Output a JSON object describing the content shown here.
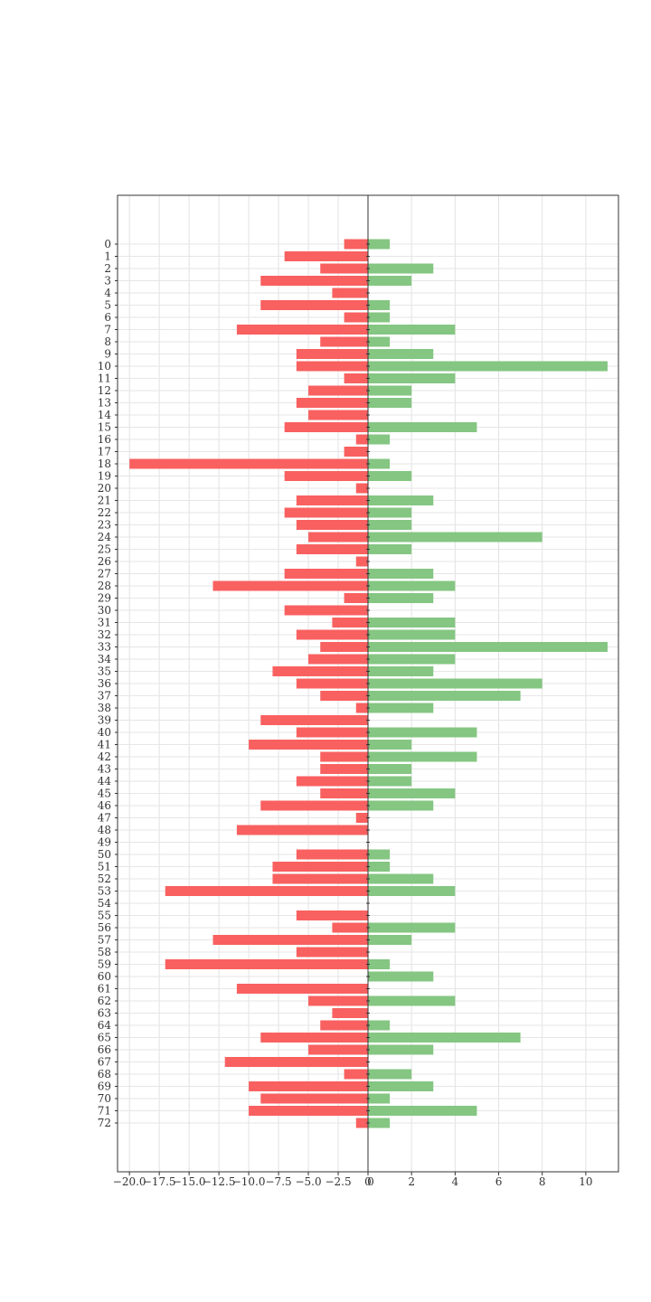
{
  "chart_data": {
    "type": "bar",
    "orientation": "horizontal-diverging",
    "categories": [
      "0",
      "1",
      "2",
      "3",
      "4",
      "5",
      "6",
      "7",
      "8",
      "9",
      "10",
      "11",
      "12",
      "13",
      "14",
      "15",
      "16",
      "17",
      "18",
      "19",
      "20",
      "21",
      "22",
      "23",
      "24",
      "25",
      "26",
      "27",
      "28",
      "29",
      "30",
      "31",
      "32",
      "33",
      "34",
      "35",
      "36",
      "37",
      "38",
      "39",
      "40",
      "41",
      "42",
      "43",
      "44",
      "45",
      "46",
      "47",
      "48",
      "49",
      "50",
      "51",
      "52",
      "53",
      "54",
      "55",
      "56",
      "57",
      "58",
      "59",
      "60",
      "61",
      "62",
      "63",
      "64",
      "65",
      "66",
      "67",
      "68",
      "69",
      "70",
      "71",
      "72"
    ],
    "series": [
      {
        "color": "#f96060",
        "values": [
          -2,
          -7,
          -4,
          -9,
          -3,
          -9,
          -2,
          -11,
          -4,
          -6,
          -6,
          -2,
          -5,
          -6,
          -5,
          -7,
          -1,
          -2,
          -20,
          -7,
          -1,
          -6,
          -7,
          -6,
          -5,
          -6,
          -1,
          -7,
          -13,
          -2,
          -7,
          -3,
          -6,
          -4,
          -5,
          -8,
          -6,
          -4,
          -1,
          -9,
          -6,
          -10,
          -4,
          -4,
          -6,
          -4,
          -9,
          -1,
          -11,
          0,
          -6,
          -8,
          -8,
          -17,
          0,
          -6,
          -3,
          -13,
          -6,
          -17,
          0,
          -11,
          -5,
          -3,
          -4,
          -9,
          -5,
          -12,
          -2,
          -10,
          -9,
          -10,
          -1
        ]
      },
      {
        "color": "#84c682",
        "values": [
          1,
          0,
          3,
          2,
          0,
          1,
          1,
          4,
          1,
          3,
          11,
          4,
          2,
          2,
          0,
          5,
          1,
          0,
          1,
          2,
          0,
          3,
          2,
          2,
          8,
          2,
          0,
          3,
          4,
          3,
          0,
          4,
          4,
          11,
          4,
          3,
          8,
          7,
          3,
          0,
          5,
          2,
          5,
          2,
          2,
          4,
          3,
          0,
          0,
          0,
          1,
          1,
          3,
          4,
          0,
          0,
          4,
          2,
          0,
          1,
          3,
          0,
          4,
          0,
          1,
          7,
          3,
          0,
          2,
          3,
          1,
          5,
          1
        ]
      }
    ],
    "left_axis": {
      "xlim": [
        -21,
        0
      ],
      "ticks": [
        "−20.0",
        "−17.5",
        "−15.0",
        "−12.5",
        "−10.0",
        "−7.5",
        "−5.0",
        "−2.5",
        "0"
      ],
      "tick_values": [
        -20,
        -17.5,
        -15,
        -12.5,
        -10,
        -7.5,
        -5,
        -2.5,
        0
      ]
    },
    "right_axis": {
      "xlim": [
        0,
        11.5
      ],
      "ticks": [
        "0",
        "2",
        "4",
        "6",
        "8",
        "10"
      ],
      "tick_values": [
        0,
        2,
        4,
        6,
        8,
        10
      ]
    },
    "grid": true,
    "title": "",
    "xlabel": "",
    "ylabel": ""
  }
}
